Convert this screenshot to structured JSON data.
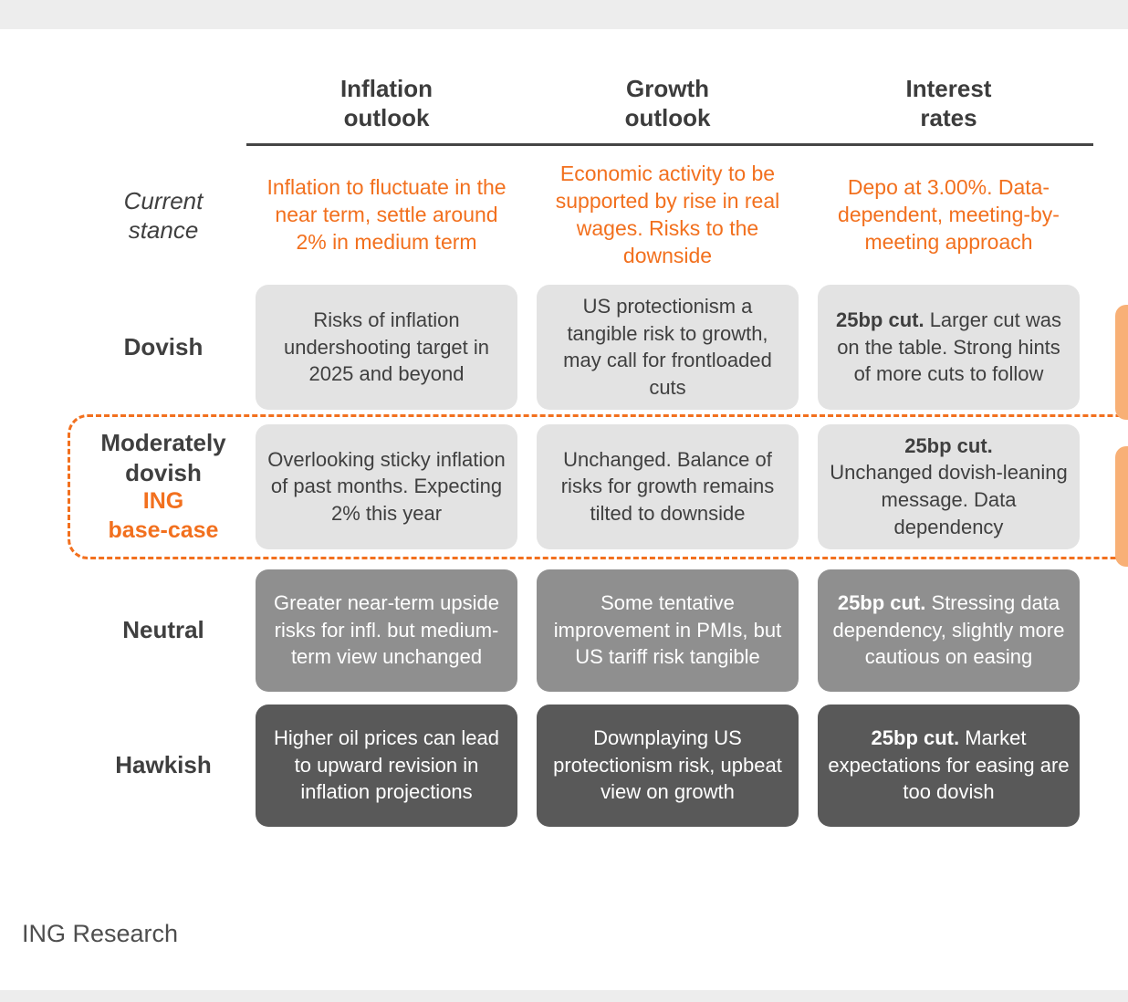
{
  "chart_data": {
    "type": "table",
    "title": "",
    "columns": [
      "Inflation\noutlook",
      "Growth\noutlook",
      "Interest\nrates"
    ],
    "rows": [
      {
        "label": "Current\nstance",
        "sublabel": "",
        "cells": [
          {
            "bold": "",
            "text": "Inflation to fluctuate in the near term, settle around 2% in medium term"
          },
          {
            "bold": "",
            "text": "Economic activity to be supported by rise in real wages. Risks to the downside"
          },
          {
            "bold": "",
            "text": "Depo at 3.00%. Data-dependent, meeting-by-meeting approach"
          }
        ]
      },
      {
        "label": "Dovish",
        "sublabel": "",
        "cells": [
          {
            "bold": "",
            "text": "Risks of inflation undershooting target in 2025 and beyond"
          },
          {
            "bold": "",
            "text": "US protectionism a tangible risk to growth, may call for frontloaded cuts"
          },
          {
            "bold": "25bp cut.",
            "text": " Larger cut was on the table. Strong hints of more cuts to follow"
          }
        ]
      },
      {
        "label": "Moderately\ndovish",
        "sublabel": "ING\nbase-case",
        "cells": [
          {
            "bold": "",
            "text": "Overlooking sticky inflation of past months. Expecting 2% this year"
          },
          {
            "bold": "",
            "text": "Unchanged. Balance of risks for growth remains tilted to downside"
          },
          {
            "bold": "25bp cut.",
            "text": "\nUnchanged dovish-leaning message. Data dependency"
          }
        ]
      },
      {
        "label": "Neutral",
        "sublabel": "",
        "cells": [
          {
            "bold": "",
            "text": "Greater near-term upside risks for infl. but medium-term view unchanged"
          },
          {
            "bold": "",
            "text": "Some tentative improvement in PMIs, but US tariff risk tangible"
          },
          {
            "bold": "25bp cut.",
            "text": " Stressing data dependency, slightly more cautious on easing"
          }
        ]
      },
      {
        "label": "Hawkish",
        "sublabel": "",
        "cells": [
          {
            "bold": "",
            "text": "Higher oil prices can lead to upward revision in inflation projections"
          },
          {
            "bold": "",
            "text": "Downplaying US protectionism risk, upbeat view on growth"
          },
          {
            "bold": "25bp cut.",
            "text": " Market expectations for easing are too dovish"
          }
        ]
      }
    ]
  },
  "footer": {
    "source": "ING Research"
  },
  "colors": {
    "accent-orange": "#f2701e",
    "light-box": "#e3e3e3",
    "medium-box": "#8f8f8f",
    "dark-box": "#595959",
    "text-dark": "#3f3f3f",
    "partial-card": "#f8b076",
    "band-gray": "#ededed"
  }
}
